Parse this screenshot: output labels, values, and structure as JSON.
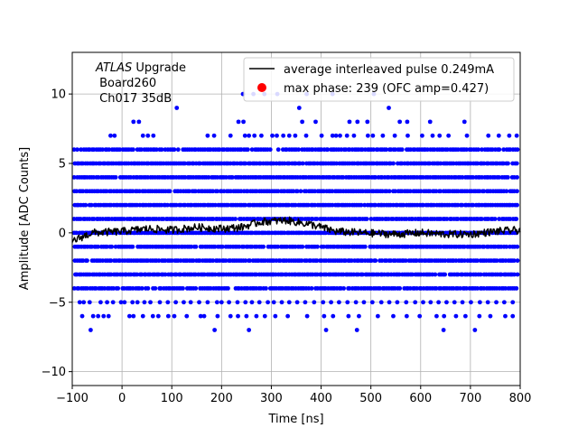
{
  "chart_data": {
    "type": "scatter",
    "title": "",
    "xlabel": "Time [ns]",
    "ylabel": "Amplitude [ADC Counts]",
    "xlim": [
      -100,
      800
    ],
    "ylim": [
      -11,
      13
    ],
    "grid": true,
    "legend_placement": "top-right",
    "x_ticks": [
      -100,
      0,
      100,
      200,
      300,
      400,
      500,
      600,
      700,
      800
    ],
    "y_ticks": [
      -10,
      -5,
      0,
      5,
      10
    ],
    "annotation": {
      "line1_italic": "ATLAS",
      "line1_rest": " Upgrade",
      "line2": " Board260",
      "line3": " Ch017 35dB"
    },
    "colors": {
      "points": "#0000ff",
      "pulse": "#000000",
      "max_marker": "#ff0000",
      "grid": "#b0b0b0"
    },
    "series": [
      {
        "name": "average interleaved pulse 0.249mA",
        "kind": "line",
        "x_range": [
          -100,
          800
        ],
        "profile": [
          [
            -100,
            -0.6
          ],
          [
            -60,
            0.0
          ],
          [
            0,
            0.1
          ],
          [
            50,
            0.3
          ],
          [
            100,
            0.2
          ],
          [
            150,
            0.4
          ],
          [
            200,
            0.3
          ],
          [
            240,
            0.4
          ],
          [
            280,
            0.8
          ],
          [
            330,
            0.9
          ],
          [
            380,
            0.6
          ],
          [
            430,
            0.1
          ],
          [
            480,
            0.0
          ],
          [
            550,
            -0.1
          ],
          [
            600,
            0.0
          ],
          [
            650,
            -0.1
          ],
          [
            700,
            -0.1
          ],
          [
            750,
            0.1
          ],
          [
            800,
            0.2
          ]
        ]
      },
      {
        "name": "max phase: 239 (OFC amp=0.427)",
        "kind": "scatter"
      }
    ],
    "samples": {
      "x_range": [
        -95,
        797
      ],
      "dense_levels": [
        -4,
        -3,
        -2,
        -1,
        0,
        1,
        2,
        3,
        4,
        5,
        6
      ],
      "sparse_levels": [
        {
          "y": 10,
          "x": [
            243,
            264,
            286,
            312,
            371,
            423,
            506
          ]
        },
        {
          "y": 9,
          "x": [
            110,
            356,
            536
          ]
        },
        {
          "y": 8,
          "x": [
            23,
            34,
            234,
            244,
            362,
            389,
            457,
            473,
            493,
            558,
            573,
            619,
            688
          ]
        },
        {
          "y": 7,
          "x": [
            -23,
            -15,
            42,
            52,
            63,
            172,
            185,
            218,
            247,
            255,
            266,
            280,
            302,
            311,
            324,
            336,
            348,
            370,
            401,
            423,
            430,
            438,
            452,
            466,
            494,
            504,
            524,
            548,
            574,
            603,
            624,
            638,
            656,
            693,
            736,
            757,
            778,
            793
          ]
        },
        {
          "y": -5,
          "x": [
            -85,
            -77,
            -65,
            -43,
            -30,
            -18,
            -2,
            5,
            21,
            31,
            45,
            57,
            76,
            92,
            108,
            124,
            138,
            155,
            172,
            191,
            200,
            215,
            232,
            248,
            261,
            276,
            293,
            305,
            321,
            336,
            352,
            368,
            386,
            404,
            420,
            436,
            453,
            470,
            486,
            503,
            521,
            537,
            553,
            571,
            589,
            605,
            620,
            636,
            652,
            668,
            684,
            701,
            719,
            735,
            752,
            768,
            785
          ]
        },
        {
          "y": -6,
          "x": [
            -80,
            -58,
            -48,
            -37,
            -27,
            15,
            23,
            42,
            62,
            73,
            93,
            105,
            130,
            158,
            165,
            192,
            218,
            233,
            250,
            270,
            287,
            308,
            333,
            372,
            406,
            424,
            455,
            476,
            514,
            545,
            572,
            598,
            632,
            647,
            671,
            690,
            718,
            740,
            770,
            785
          ]
        },
        {
          "y": -7,
          "x": [
            -63,
            186,
            255,
            410,
            472,
            646,
            709
          ]
        }
      ],
      "max_phase_points": []
    }
  }
}
